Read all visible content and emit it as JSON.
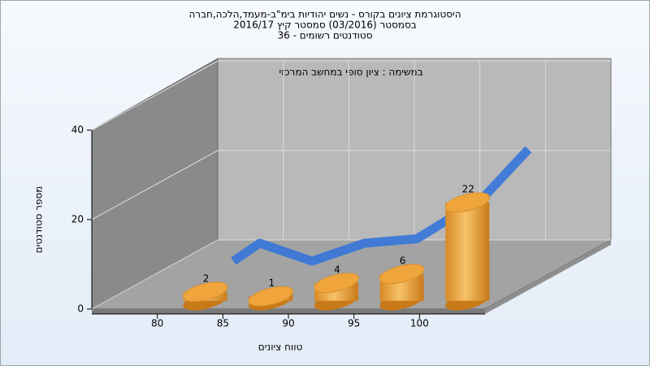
{
  "chart_data": {
    "type": "bar3d",
    "title_lines": [
      "היסטוגרמת ציונים בקורס - נשים יהודיות בימ\"ב-מעמד,הלכה,חברה",
      "בסמסטר  (03/2016)  סמסטר קיץ  2016/17",
      "סטודנטים רשומים - 36"
    ],
    "subtitle": "במשימה : ציון סופי במחשב המרכזי",
    "xlabel": "טווח ציונים",
    "ylabel": "מספר סטודנטים",
    "xlim": [
      75,
      105
    ],
    "xticks": [
      80,
      85,
      90,
      95,
      100
    ],
    "ylim": [
      0,
      40
    ],
    "yticks": [
      0,
      20,
      40
    ],
    "grid": true,
    "series": [
      {
        "kind": "bar",
        "color": "#f0a53c",
        "x": [
          82.5,
          87.5,
          92.5,
          97.5,
          102.5
        ],
        "values": [
          2,
          1,
          4,
          6,
          22
        ]
      },
      {
        "kind": "line",
        "color": "#3b78d8",
        "x": [
          81,
          83,
          87,
          91,
          95,
          100,
          103.5
        ],
        "values": [
          3,
          7,
          3,
          7,
          8,
          17,
          28
        ]
      }
    ]
  }
}
